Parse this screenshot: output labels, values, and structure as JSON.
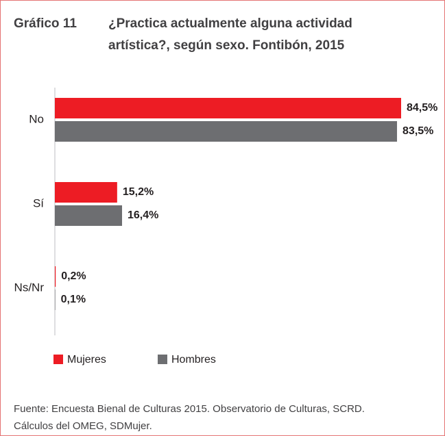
{
  "chart_data": {
    "type": "hbar",
    "label": "Gráfico 11",
    "title": [
      "¿Practica actualmente alguna actividad",
      "artística?, según sexo. Fontibón, 2015"
    ],
    "categories": [
      "No",
      "Sí",
      "Ns/Nr"
    ],
    "series": [
      {
        "name": "Mujeres",
        "color": "#ed1c24",
        "values": [
          84.5,
          15.2,
          0.2
        ],
        "value_labels": [
          "84,5%",
          "15,2%",
          "0,2%"
        ]
      },
      {
        "name": "Hombres",
        "color": "#6d6e71",
        "values": [
          83.5,
          16.4,
          0.1
        ],
        "value_labels": [
          "83,5%",
          "16,4%",
          "0,1%"
        ]
      }
    ],
    "source": [
      "Fuente: Encuesta Bienal de Culturas 2015. Observatorio de Culturas, SCRD.",
      "Cálculos del OMEG, SDMujer."
    ]
  }
}
